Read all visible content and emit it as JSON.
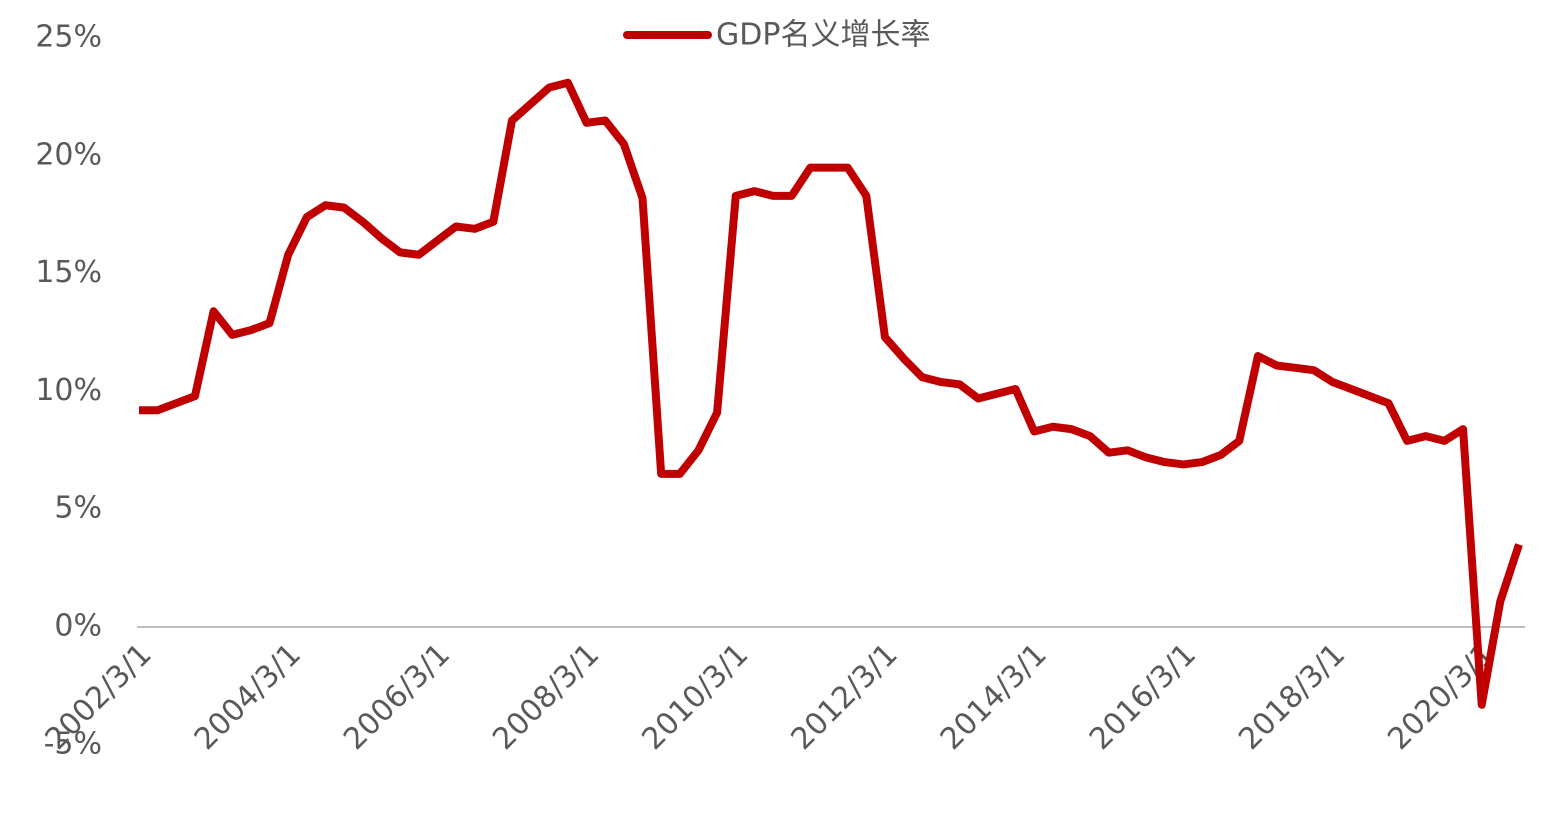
{
  "chart_data": {
    "type": "line",
    "categories": [
      "2002/3/1",
      null,
      null,
      null,
      null,
      null,
      null,
      null,
      "2004/3/1",
      null,
      null,
      null,
      null,
      null,
      null,
      null,
      "2006/3/1",
      null,
      null,
      null,
      null,
      null,
      null,
      null,
      "2008/3/1",
      null,
      null,
      null,
      null,
      null,
      null,
      null,
      "2010/3/1",
      null,
      null,
      null,
      null,
      null,
      null,
      null,
      "2012/3/1",
      null,
      null,
      null,
      null,
      null,
      null,
      null,
      "2014/3/1",
      null,
      null,
      null,
      null,
      null,
      null,
      null,
      "2016/3/1",
      null,
      null,
      null,
      null,
      null,
      null,
      null,
      "2018/3/1",
      null,
      null,
      null,
      null,
      null,
      null,
      null,
      "2020/3/1",
      null,
      null
    ],
    "series": [
      {
        "name": "GDP名义增长率",
        "color": "#c00000",
        "values": [
          9.2,
          9.2,
          9.5,
          9.8,
          13.4,
          12.4,
          12.6,
          12.9,
          15.8,
          17.4,
          17.9,
          17.8,
          17.2,
          16.5,
          15.9,
          15.8,
          16.4,
          17.0,
          16.9,
          17.2,
          21.5,
          22.2,
          22.9,
          23.1,
          21.4,
          21.5,
          20.5,
          18.2,
          6.5,
          6.5,
          7.5,
          9.1,
          18.3,
          18.5,
          18.3,
          18.3,
          19.5,
          19.5,
          19.5,
          18.3,
          12.3,
          11.4,
          10.6,
          10.4,
          10.3,
          9.7,
          9.9,
          10.1,
          8.3,
          8.5,
          8.4,
          8.1,
          7.4,
          7.5,
          7.2,
          7.0,
          6.9,
          7.0,
          7.3,
          7.9,
          11.5,
          11.1,
          11.0,
          10.9,
          10.4,
          10.1,
          9.8,
          9.5,
          7.9,
          8.1,
          7.9,
          8.4,
          -3.3,
          1.1,
          3.5
        ]
      }
    ],
    "ylim": [
      -5,
      25
    ],
    "yticks": [
      {
        "value": -5,
        "label": "-5%"
      },
      {
        "value": 0,
        "label": "0%"
      },
      {
        "value": 5,
        "label": "5%"
      },
      {
        "value": 10,
        "label": "10%"
      },
      {
        "value": 15,
        "label": "15%"
      },
      {
        "value": 20,
        "label": "20%"
      },
      {
        "value": 25,
        "label": "25%"
      }
    ],
    "legend": "top"
  }
}
